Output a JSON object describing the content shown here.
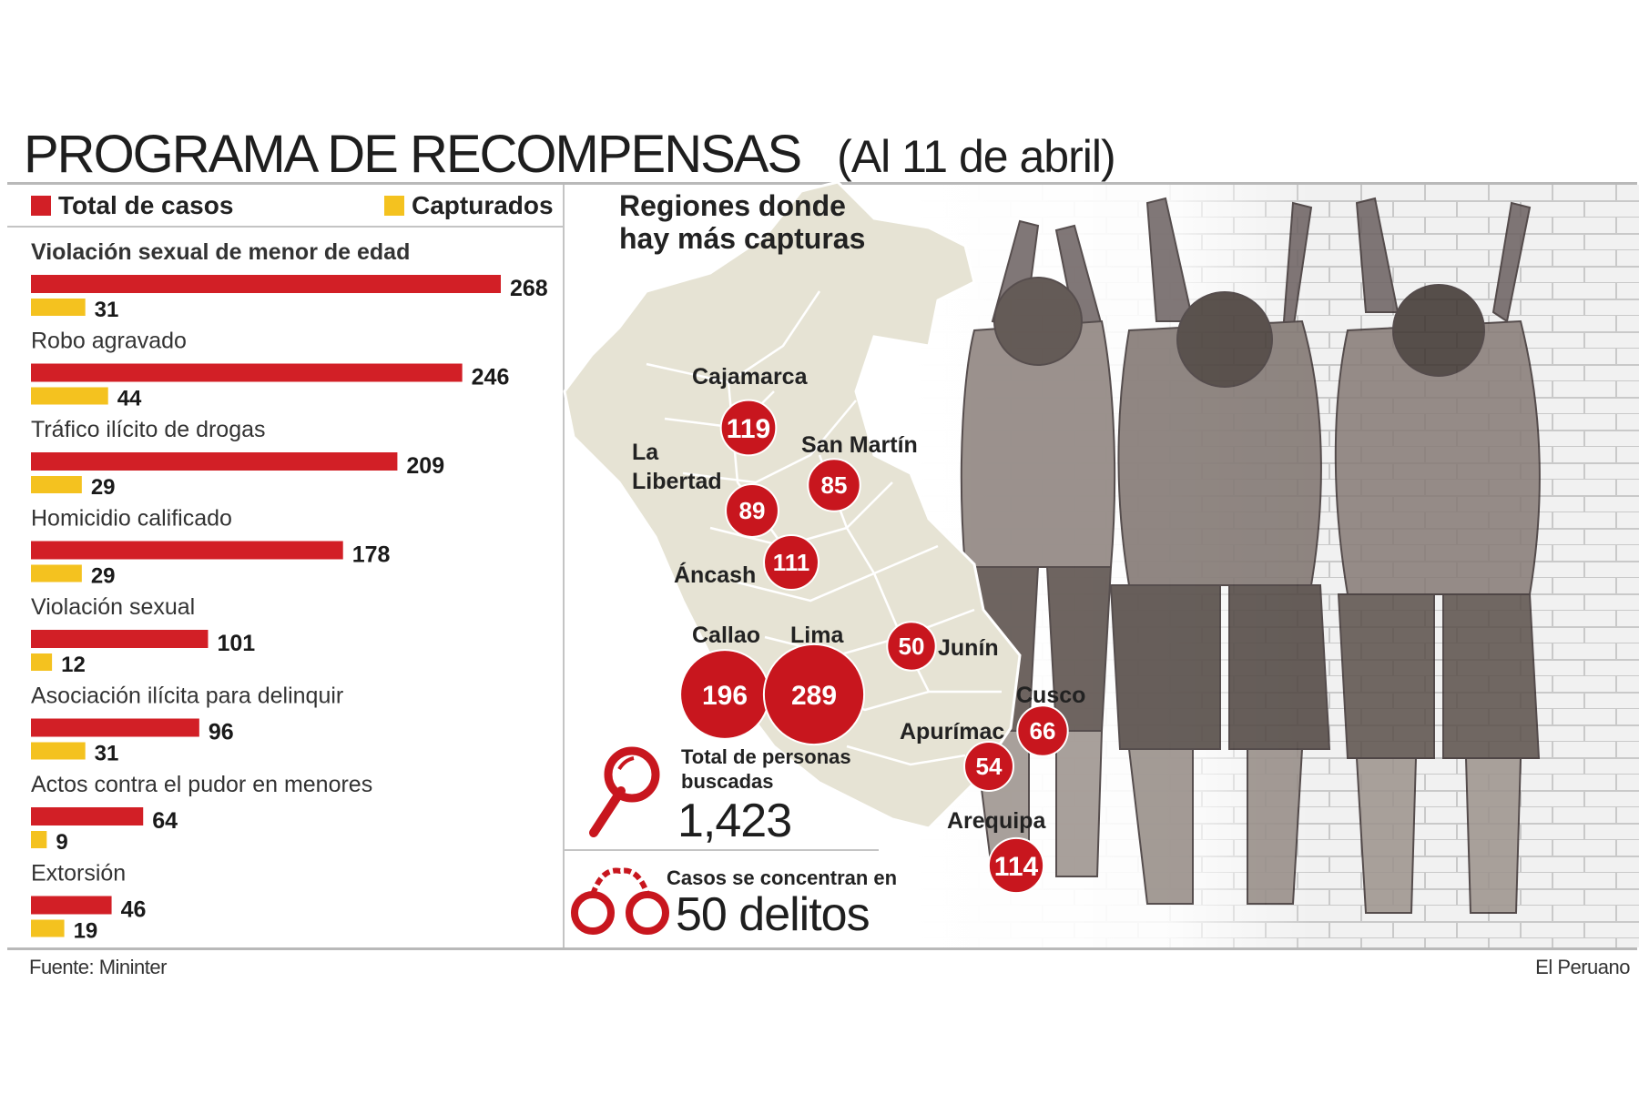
{
  "header": {
    "title": "PROGRAMA DE RECOMPENSAS",
    "subtitle": "(Al 11 de abril)"
  },
  "legend": {
    "total_label": "Total de casos",
    "captured_label": "Capturados"
  },
  "colors": {
    "total": "#d21f26",
    "captured": "#f4c21f",
    "region_circle": "#c8161e",
    "map_fill": "#e6e3d4",
    "map_border": "#ffffff"
  },
  "chart_data": [
    {
      "type": "bar",
      "orientation": "horizontal",
      "categories": [
        "Violación sexual de menor de edad",
        "Robo agravado",
        "Tráfico ilícito de drogas",
        "Homicidio calificado",
        "Violación sexual",
        "Asociación ilícita para delinquir",
        "Actos contra el pudor en menores",
        "Extorsión"
      ],
      "series": [
        {
          "name": "Total de casos",
          "values": [
            268,
            246,
            209,
            178,
            101,
            96,
            64,
            46
          ]
        },
        {
          "name": "Capturados",
          "values": [
            31,
            44,
            29,
            29,
            12,
            31,
            9,
            19
          ]
        }
      ],
      "xlim": [
        0,
        268
      ],
      "legend": "top",
      "grid": false
    },
    {
      "type": "map-bubble",
      "title": "Regiones donde hay más capturas",
      "regions": [
        {
          "name": "Cajamarca",
          "value": 119
        },
        {
          "name": "San Martín",
          "value": 85
        },
        {
          "name": "La Libertad",
          "value": 89
        },
        {
          "name": "Áncash",
          "value": 111
        },
        {
          "name": "Callao",
          "value": 196
        },
        {
          "name": "Lima",
          "value": 289
        },
        {
          "name": "Junín",
          "value": 50
        },
        {
          "name": "Cusco",
          "value": 66
        },
        {
          "name": "Apurímac",
          "value": 54
        },
        {
          "name": "Arequipa",
          "value": 114
        }
      ]
    }
  ],
  "stats": {
    "searched_label": "Total de personas buscadas",
    "searched_value": "1,423",
    "crimes_label": "Casos se concentran en",
    "crimes_value": "50 delitos"
  },
  "icons": {
    "magnifier": "magnifier-icon",
    "handcuffs": "handcuffs-icon"
  },
  "footer": {
    "source": "Fuente: Mininter",
    "publisher": "El Peruano"
  }
}
